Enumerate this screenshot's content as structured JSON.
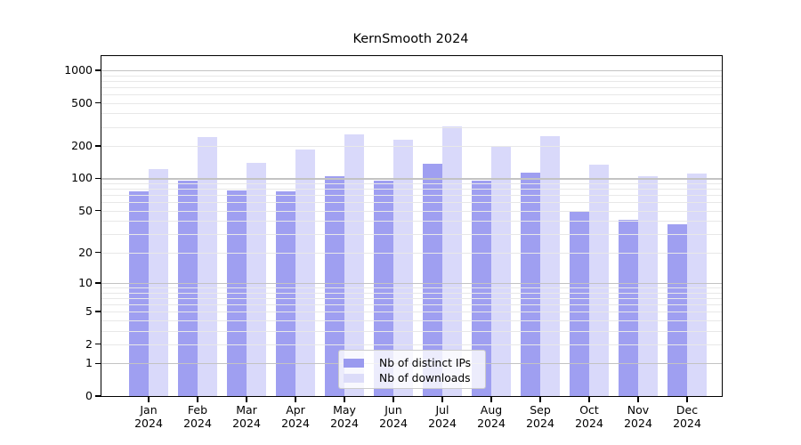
{
  "figure": {
    "title": "KernSmooth 2024"
  },
  "chart_data": {
    "type": "bar",
    "title": "KernSmooth 2024",
    "xlabel": "",
    "ylabel": "",
    "categories": [
      "Jan",
      "Feb",
      "Mar",
      "Apr",
      "May",
      "Jun",
      "Jul",
      "Aug",
      "Sep",
      "Oct",
      "Nov",
      "Dec"
    ],
    "x_year_label": "2024",
    "series": [
      {
        "name": "Nb of distinct IPs",
        "color": "rgba(80,80,230,0.55)",
        "legend_color": "#9a9aef",
        "values": [
          76,
          95,
          78,
          76,
          105,
          96,
          136,
          96,
          114,
          50,
          41,
          37
        ]
      },
      {
        "name": "Nb of downloads",
        "color": "rgba(80,80,230,0.22)",
        "legend_color": "#dcdcf9",
        "values": [
          122,
          242,
          140,
          185,
          258,
          228,
          302,
          200,
          246,
          135,
          105,
          110
        ]
      }
    ],
    "yscale": "log1p",
    "yticks": [
      0,
      1,
      2,
      5,
      10,
      20,
      50,
      100,
      200,
      500,
      1000
    ],
    "ylim": [
      0,
      1352
    ],
    "grid": "horizontal, log major+minor",
    "legend_position": "inside bottom-center"
  },
  "colors": {
    "grid_major": "#c3c3c3",
    "grid_minor": "#e8e8e8",
    "frame": "#000000",
    "background": "#ffffff"
  }
}
